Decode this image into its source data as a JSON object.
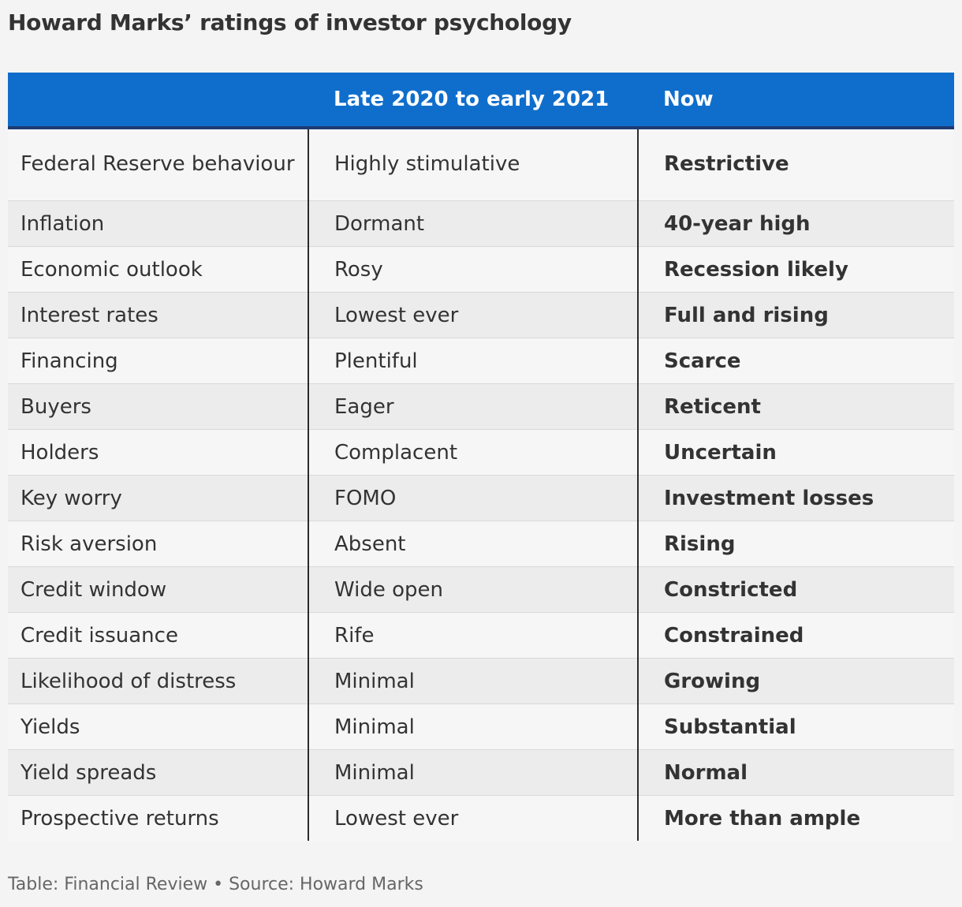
{
  "title": "Howard Marks’ ratings of investor psychology",
  "table": {
    "headers": [
      "",
      "Late 2020 to early 2021",
      "Now"
    ],
    "rows": [
      [
        "Federal Reserve behaviour",
        "Highly stimulative",
        "Restrictive"
      ],
      [
        "Inflation",
        "Dormant",
        "40-year high"
      ],
      [
        "Economic outlook",
        "Rosy",
        "Recession likely"
      ],
      [
        "Interest rates",
        "Lowest ever",
        "Full and rising"
      ],
      [
        "Financing",
        "Plentiful",
        "Scarce"
      ],
      [
        "Buyers",
        "Eager",
        "Reticent"
      ],
      [
        "Holders",
        "Complacent",
        "Uncertain"
      ],
      [
        "Key worry",
        "FOMO",
        "Investment losses"
      ],
      [
        "Risk aversion",
        "Absent",
        "Rising"
      ],
      [
        "Credit window",
        "Wide open",
        "Constricted"
      ],
      [
        "Credit issuance",
        "Rife",
        "Constrained"
      ],
      [
        "Likelihood of distress",
        "Minimal",
        "Growing"
      ],
      [
        "Yields",
        "Minimal",
        "Substantial"
      ],
      [
        "Yield spreads",
        "Minimal",
        "Normal"
      ],
      [
        "Prospective returns",
        "Lowest ever",
        "More than ample"
      ]
    ]
  },
  "footer": "Table: Financial Review • Source: Howard Marks",
  "colors": {
    "header_bg": "#0f6ecb",
    "header_text": "#ffffff",
    "header_rule": "#1d3a73",
    "row_light": "#f6f6f6",
    "row_dark": "#ececec",
    "text": "#333333"
  }
}
